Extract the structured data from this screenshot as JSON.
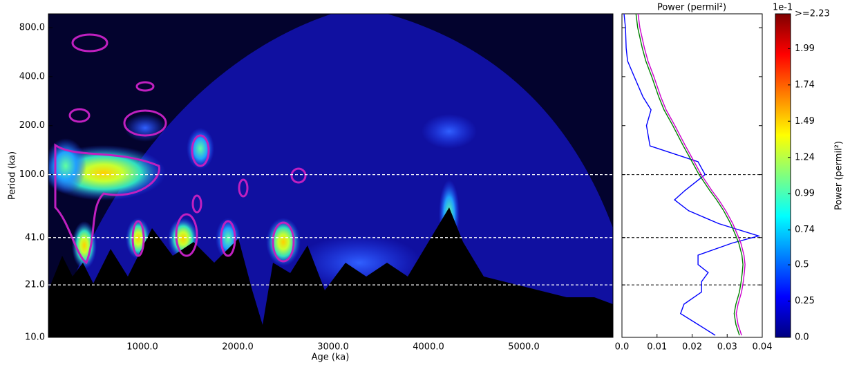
{
  "chart_data": {
    "type": "wavelet",
    "xlabel": "Age (ka)",
    "ylabel": "Period (ka)",
    "xlim": [
      14,
      5935
    ],
    "xticks": [
      {
        "value": 1000,
        "label": "1000.0"
      },
      {
        "value": 2000,
        "label": "2000.0"
      },
      {
        "value": 3000,
        "label": "3000.0"
      },
      {
        "value": 4000,
        "label": "4000.0"
      },
      {
        "value": 5000,
        "label": "5000.0"
      }
    ],
    "ylim": [
      10,
      973
    ],
    "log_y": true,
    "yticks": [
      {
        "value": 10,
        "label": "10.0"
      },
      {
        "value": 21,
        "label": "21.0"
      },
      {
        "value": 41,
        "label": "41.0"
      },
      {
        "value": 100,
        "label": "100.0"
      },
      {
        "value": 200,
        "label": "200.0"
      },
      {
        "value": 400,
        "label": "400.0"
      },
      {
        "value": 800,
        "label": "800.0"
      }
    ],
    "reference_periods": [
      100,
      41,
      21
    ],
    "spectrum": {
      "title": "Power (permil²)",
      "xlim": [
        0,
        0.04
      ],
      "xticks": [
        {
          "value": 0,
          "label": "0.0"
        },
        0.01,
        0.02,
        0.03,
        0.04
      ],
      "periods": [
        973,
        800,
        600,
        500,
        400,
        300,
        250,
        200,
        150,
        120,
        100,
        80,
        70,
        60,
        50,
        42,
        38,
        32,
        28,
        25,
        22,
        19,
        16,
        14,
        12,
        10.3
      ],
      "series": [
        {
          "color": "#0000ff",
          "values": [
            0.0006,
            0.001,
            0.0012,
            0.0016,
            0.0035,
            0.006,
            0.0083,
            0.007,
            0.008,
            0.0217,
            0.0237,
            0.018,
            0.015,
            0.019,
            0.0276,
            0.039,
            0.0315,
            0.0217,
            0.0217,
            0.0246,
            0.0227,
            0.0227,
            0.0177,
            0.0167,
            0.0217,
            0.0266
          ]
        },
        {
          "color": "#008000",
          "values": [
            0.004,
            0.0045,
            0.0058,
            0.0068,
            0.0085,
            0.0105,
            0.012,
            0.0145,
            0.0175,
            0.02,
            0.022,
            0.025,
            0.027,
            0.029,
            0.031,
            0.0325,
            0.0333,
            0.0342,
            0.0345,
            0.0343,
            0.034,
            0.0335,
            0.0325,
            0.032,
            0.0325,
            0.0335
          ]
        },
        {
          "color": "#cc00cc",
          "values": [
            0.0046,
            0.0051,
            0.0064,
            0.0074,
            0.0091,
            0.0111,
            0.0126,
            0.0151,
            0.0181,
            0.0206,
            0.0226,
            0.0256,
            0.0276,
            0.0296,
            0.0316,
            0.0331,
            0.0339,
            0.0348,
            0.0351,
            0.0349,
            0.0346,
            0.0341,
            0.0331,
            0.0326,
            0.0331,
            0.0341
          ]
        }
      ]
    },
    "colorbar": {
      "label": "Power (permil²)",
      "offset_label": "1e-1",
      "lim": [
        0,
        2.23
      ],
      "ticks": [
        {
          "value": 0,
          "label": "0.0"
        },
        0.25,
        0.5,
        0.74,
        0.99,
        1.24,
        1.49,
        1.74,
        1.99,
        {
          "value": 2.23,
          "label": ">=2.23"
        }
      ]
    }
  }
}
